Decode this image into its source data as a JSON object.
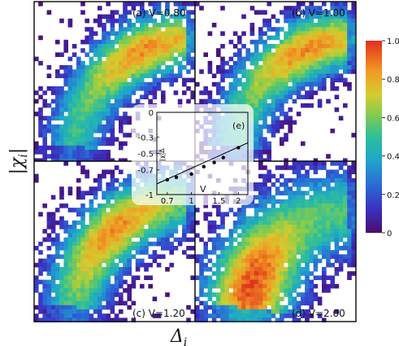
{
  "chart_data": [
    {
      "type": "heatmap",
      "panel": "a",
      "label": "(a) V=0.80",
      "xlabel": "Δ_i",
      "ylabel": "|χ_i|",
      "grid": false,
      "colorbar": {
        "min": 0,
        "max": 1,
        "ticks": [
          "0",
          "0.2",
          "0.4",
          "0.6",
          "0.8",
          "1.0"
        ]
      },
      "arc": {
        "peak": 0.85,
        "core_width": 0.1,
        "hot_region": "left"
      }
    },
    {
      "type": "heatmap",
      "panel": "b",
      "label": "(b) V=1.00",
      "arc": {
        "peak": 0.85,
        "core_width": 0.1,
        "hot_region": "left"
      }
    },
    {
      "type": "heatmap",
      "panel": "c",
      "label": "(c) V=1.20",
      "arc": {
        "peak": 0.85,
        "core_width": 0.12,
        "hot_region": "middle"
      }
    },
    {
      "type": "heatmap",
      "panel": "d",
      "label": "(d) V=2.00",
      "arc": {
        "peak": 0.95,
        "core_width": 0.18,
        "hot_region": "bottom"
      }
    },
    {
      "type": "scatter",
      "panel": "e",
      "label": "(e)",
      "xlabel": "V",
      "ylabel": "|χ|Δ",
      "x_scale": "log",
      "xlim": [
        0.6,
        2.3
      ],
      "ylim": [
        -1.0,
        0.0
      ],
      "x_ticks": [
        "0.7",
        "1",
        "1.5",
        "2"
      ],
      "x_tick_values": [
        0.7,
        1.0,
        1.5,
        2.0
      ],
      "y_ticks": [
        "0",
        "-0.3",
        "-0.5",
        "-0.7",
        "-1"
      ],
      "y_tick_values": [
        0.0,
        -0.3,
        -0.5,
        -0.7,
        -1.0
      ],
      "points": [
        {
          "x": 0.7,
          "y": -0.82
        },
        {
          "x": 0.8,
          "y": -0.79
        },
        {
          "x": 1.0,
          "y": -0.75
        },
        {
          "x": 1.2,
          "y": -0.66
        },
        {
          "x": 1.4,
          "y": -0.61
        },
        {
          "x": 1.6,
          "y": -0.55
        },
        {
          "x": 2.0,
          "y": -0.43
        }
      ],
      "fit_line": [
        {
          "x": 0.6,
          "y": -0.87
        },
        {
          "x": 2.3,
          "y": -0.37
        }
      ]
    }
  ],
  "axes": {
    "xlabel": "Δ",
    "xlabel_sub": "i",
    "ylabel": "|χ",
    "ylabel_sub": "i",
    "ylabel_end": "|"
  }
}
